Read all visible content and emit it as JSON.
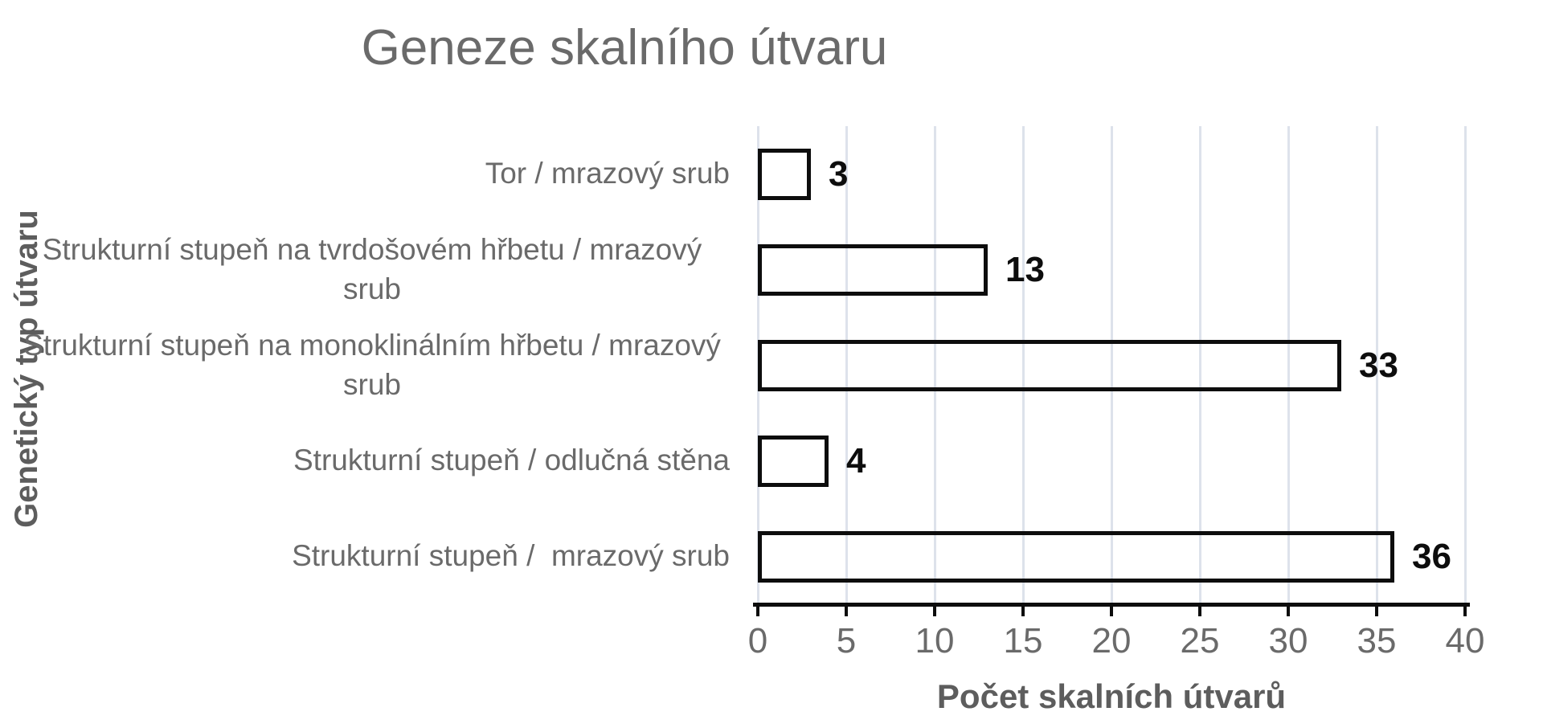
{
  "chart_data": {
    "type": "bar",
    "orientation": "horizontal",
    "title": "Geneze skalního útvaru",
    "xlabel": "Počet skalních útvarů",
    "ylabel": "Genetický typ útvaru",
    "categories": [
      "Tor / mrazový srub",
      "Strukturní stupeň na tvrdošovém hřbetu / mrazový srub",
      "Strukturní stupeň na monoklinálním hřbetu / mrazový srub",
      "Strukturní stupeň / odlučná stěna",
      "Strukturní stupeň /  mrazový srub"
    ],
    "values": [
      3,
      13,
      33,
      4,
      36
    ],
    "data_labels": [
      "3",
      "13",
      "33",
      "4",
      "36"
    ],
    "xlim": [
      0,
      40
    ],
    "xticks": [
      0,
      5,
      10,
      15,
      20,
      25,
      30,
      35,
      40
    ],
    "grid": "vertical",
    "legend": "none",
    "colors": {
      "bar_fill": "transparent",
      "bar_border": "#0d0d0d",
      "gridline": "#dde2eb",
      "axis_line": "#0d0d0d",
      "text_gray": "#6a6a6a",
      "axis_title_gray": "#5d5d5d",
      "data_label": "#0d0d0d",
      "background": "#ffffff"
    }
  }
}
